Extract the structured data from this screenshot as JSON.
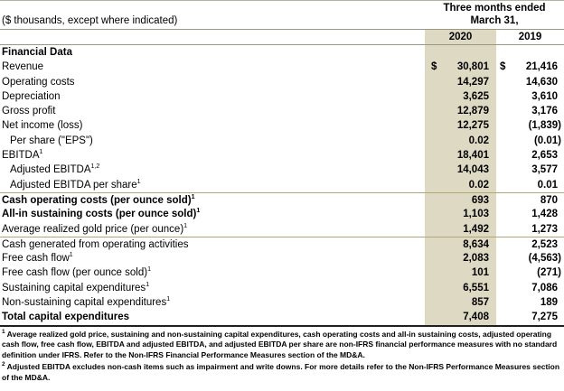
{
  "header": {
    "caption": "($ thousands, except where indicated)",
    "period_line1": "Three months ended",
    "period_line2": "March 31,",
    "col_2020": "2020",
    "col_2019": "2019"
  },
  "colors": {
    "highlight_column": "#ded9c3",
    "header_rule": "#9a9782",
    "section_rule": "#b0a678",
    "top_rule": "#b5b2a3",
    "bottom_rule": "#1f1f1f"
  },
  "table": {
    "currency_symbol": "$",
    "rows": [
      {
        "label": "Financial Data",
        "bold": true,
        "v2020": "",
        "v2019": ""
      },
      {
        "label": "Revenue",
        "dollar": true,
        "v2020": "30,801",
        "v2019": "21,416"
      },
      {
        "label": "Operating costs",
        "v2020": "14,297",
        "v2019": "14,630"
      },
      {
        "label": "Depreciation",
        "v2020": "3,625",
        "v2019": "3,610"
      },
      {
        "label": "Gross profit",
        "v2020": "12,879",
        "v2019": "3,176"
      },
      {
        "label": "Net income (loss)",
        "v2020": "12,275",
        "v2019": "(1,839)"
      },
      {
        "label": "Per share (\"EPS\")",
        "indent": true,
        "v2020": "0.02",
        "v2019": "(0.01)"
      },
      {
        "label": "EBITDA",
        "sup": "1",
        "v2020": "18,401",
        "v2019": "2,653"
      },
      {
        "label": "Adjusted EBITDA",
        "sup": "1,2",
        "indent": true,
        "v2020": "14,043",
        "v2019": "3,577"
      },
      {
        "label": "Adjusted EBITDA per share",
        "sup": "1",
        "indent": true,
        "v2020": "0.02",
        "v2019": "0.01"
      },
      {
        "label": "Cash operating costs (per ounce sold)",
        "sup": "1",
        "bold": true,
        "rule_above": true,
        "v2020": "693",
        "v2019": "870"
      },
      {
        "label": "All-in sustaining costs (per ounce sold)",
        "sup": "1",
        "bold": true,
        "v2020": "1,103",
        "v2019": "1,428"
      },
      {
        "label": "Average realized gold price (per ounce)",
        "sup": "1",
        "v2020": "1,492",
        "v2019": "1,273"
      },
      {
        "label": "Cash generated from operating activities",
        "rule_above": true,
        "v2020": "8,634",
        "v2019": "2,523"
      },
      {
        "label": "Free cash flow",
        "sup": "1",
        "v2020": "2,083",
        "v2019": "(4,563)"
      },
      {
        "label": "Free cash flow (per ounce sold)",
        "sup": "1",
        "v2020": "101",
        "v2019": "(271)"
      },
      {
        "label": "Sustaining capital expenditures",
        "sup": "1",
        "v2020": "6,551",
        "v2019": "7,086"
      },
      {
        "label": "Non-sustaining capital expenditures",
        "sup": "1",
        "v2020": "857",
        "v2019": "189"
      },
      {
        "label": "Total capital expenditures",
        "bold": true,
        "v2020": "7,408",
        "v2019": "7,275"
      }
    ]
  },
  "footnotes": [
    {
      "sup": "1",
      "text": "Average realized gold price, sustaining and non-sustaining capital expenditures, cash operating costs and all-in sustaining costs, adjusted operating cash flow, free cash flow, EBITDA and adjusted EBITDA, and adjusted EBITDA per share are non-IFRS financial performance measures with no standard definition under IFRS. Refer to the Non-IFRS Financial Performance Measures section of the MD&A."
    },
    {
      "sup": "2",
      "text": "Adjusted EBITDA excludes non-cash items such as impairment and write downs. For more details refer to the Non-IFRS Performance Measures section of the MD&A."
    }
  ]
}
